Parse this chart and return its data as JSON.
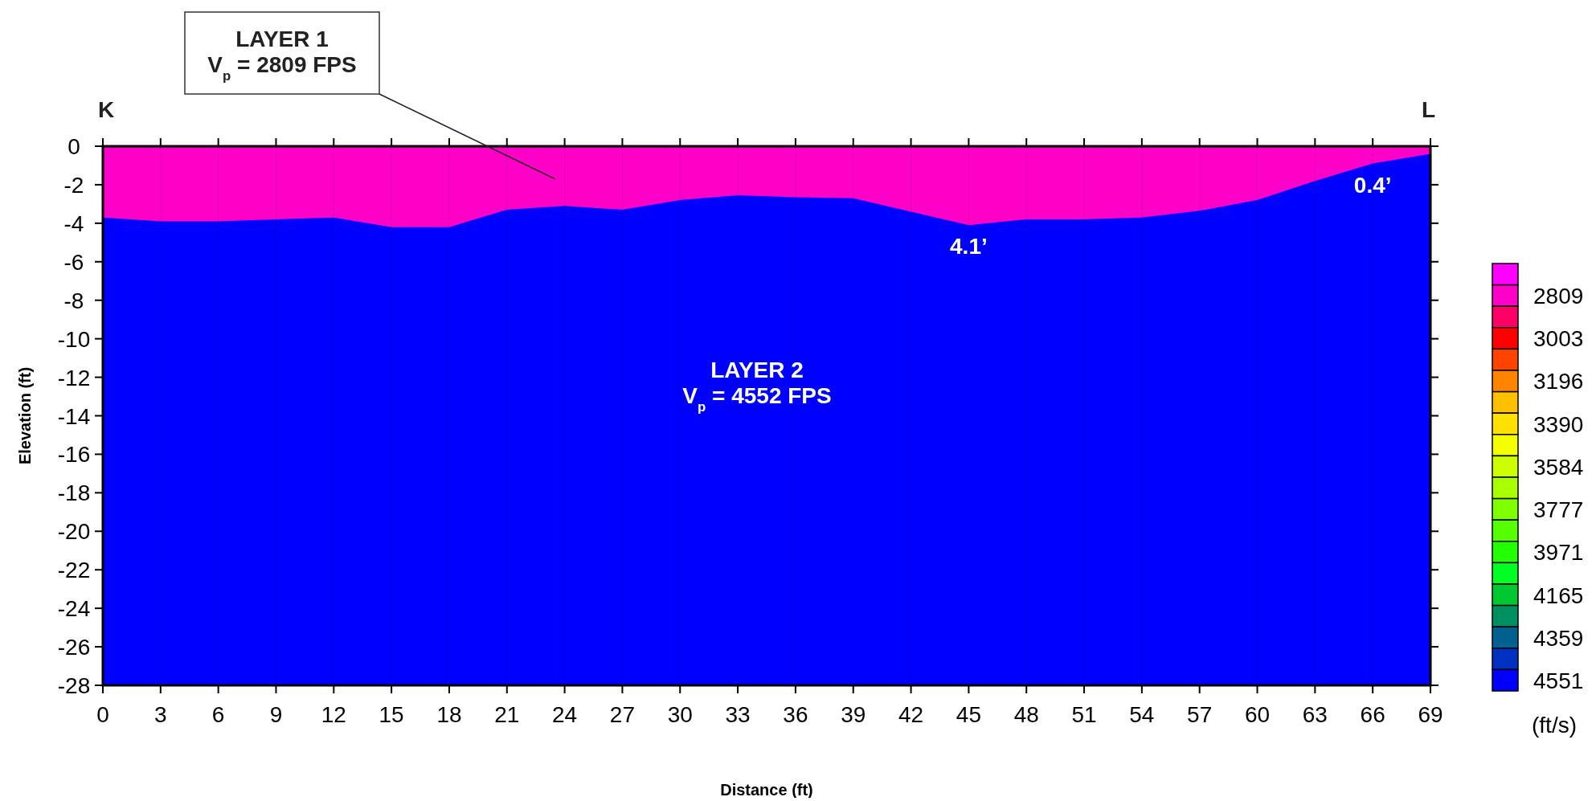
{
  "chart_data": {
    "type": "area",
    "xlabel": "Distance (ft)",
    "ylabel": "Elevation (ft)",
    "clabel": "(ft/s)",
    "x": [
      0,
      3,
      6,
      9,
      12,
      15,
      18,
      21,
      24,
      27,
      30,
      33,
      36,
      39,
      42,
      45,
      48,
      51,
      54,
      57,
      60,
      63,
      66,
      69
    ],
    "series": [
      {
        "color": "#ff00c8",
        "values": [
          -3.7,
          -3.9,
          -3.9,
          -3.8,
          -3.7,
          -4.2,
          -4.2,
          -3.3,
          -3.1,
          -3.3,
          -2.8,
          -2.55,
          -2.65,
          -2.7,
          -3.4,
          -4.1,
          -3.8,
          -3.8,
          -3.7,
          -3.35,
          -2.8,
          -1.8,
          -0.9,
          -0.4
        ]
      }
    ],
    "bands": [
      {
        "axis": "y",
        "from": -28,
        "to": 0,
        "color": "#0000ff"
      }
    ],
    "xlim": [
      0,
      69
    ],
    "xticks": [
      0,
      3,
      6,
      9,
      12,
      15,
      18,
      21,
      24,
      27,
      30,
      33,
      36,
      39,
      42,
      45,
      48,
      51,
      54,
      57,
      60,
      63,
      66,
      69
    ],
    "ylim": [
      -28,
      0
    ],
    "yticks": [
      -28,
      -26,
      -24,
      -22,
      -20,
      -18,
      -16,
      -14,
      -12,
      -10,
      -8,
      -6,
      -4,
      -2,
      0
    ],
    "clim": [
      2664,
      4599
    ],
    "cticks": [
      2809,
      3003,
      3196,
      3390,
      3584,
      3777,
      3971,
      4165,
      4359,
      4551
    ],
    "grid": "x",
    "annotations": [
      "K",
      "L",
      "LAYER 1\nV$_{p}$ = 2809 FPS",
      "LAYER 2\nV$_{p}$ = 4552 FPS",
      "4.1’",
      "0.4’"
    ]
  }
}
